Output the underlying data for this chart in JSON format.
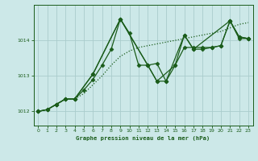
{
  "title": "Graphe pression niveau de la mer (hPa)",
  "bg_color": "#cce8e8",
  "grid_color": "#aacccc",
  "line_color": "#1a5c1a",
  "ylim": [
    1011.6,
    1015.0
  ],
  "yticks": [
    1012,
    1013,
    1014
  ],
  "xlim": [
    -0.5,
    23.5
  ],
  "xticks": [
    0,
    1,
    2,
    3,
    4,
    5,
    6,
    7,
    8,
    9,
    10,
    11,
    12,
    13,
    14,
    15,
    16,
    17,
    18,
    19,
    20,
    21,
    22,
    23
  ],
  "series1_x": [
    0,
    1,
    2,
    3,
    4,
    5,
    6,
    7,
    8,
    9,
    10,
    11,
    12,
    13,
    14,
    15,
    16,
    17,
    18,
    19,
    20,
    21,
    22,
    23
  ],
  "series1_y": [
    1012.0,
    1012.05,
    1012.2,
    1012.35,
    1012.35,
    1012.5,
    1012.75,
    1013.0,
    1013.3,
    1013.55,
    1013.7,
    1013.8,
    1013.85,
    1013.9,
    1013.95,
    1014.0,
    1014.05,
    1014.1,
    1014.15,
    1014.2,
    1014.25,
    1014.35,
    1014.45,
    1014.5
  ],
  "series2_x": [
    0,
    1,
    2,
    3,
    4,
    5,
    6,
    7,
    8,
    9,
    10,
    11,
    12,
    13,
    14,
    15,
    16,
    17,
    18,
    19,
    20,
    21,
    22,
    23
  ],
  "series2_y": [
    1012.0,
    1012.05,
    1012.2,
    1012.35,
    1012.35,
    1012.6,
    1012.9,
    1013.3,
    1013.75,
    1014.6,
    1014.2,
    1013.3,
    1013.3,
    1013.35,
    1012.85,
    1013.3,
    1013.8,
    1013.8,
    1013.8,
    1013.8,
    1013.85,
    1014.55,
    1014.05,
    1014.05
  ],
  "series3_x": [
    0,
    1,
    2,
    3,
    4,
    6,
    9,
    12,
    13,
    15,
    16,
    17,
    21,
    22,
    23
  ],
  "series3_y": [
    1012.0,
    1012.05,
    1012.2,
    1012.35,
    1012.35,
    1013.05,
    1014.6,
    1013.3,
    1012.85,
    1013.3,
    1014.15,
    1013.75,
    1014.55,
    1014.1,
    1014.05
  ],
  "series4_x": [
    0,
    1,
    2,
    3,
    4,
    6,
    9,
    12,
    13,
    14,
    16,
    17,
    18,
    19,
    20,
    21,
    22,
    23
  ],
  "series4_y": [
    1012.0,
    1012.05,
    1012.2,
    1012.35,
    1012.35,
    1013.05,
    1014.6,
    1013.3,
    1012.85,
    1012.85,
    1014.15,
    1013.75,
    1013.75,
    1013.8,
    1013.85,
    1014.55,
    1014.1,
    1014.05
  ]
}
